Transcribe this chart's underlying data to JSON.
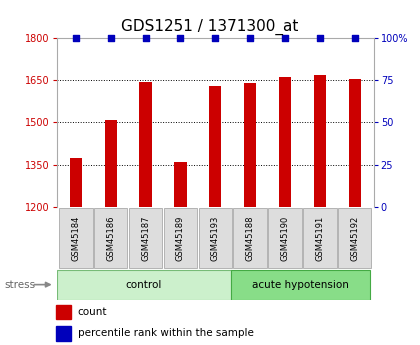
{
  "title": "GDS1251 / 1371300_at",
  "samples": [
    "GSM45184",
    "GSM45186",
    "GSM45187",
    "GSM45189",
    "GSM45193",
    "GSM45188",
    "GSM45190",
    "GSM45191",
    "GSM45192"
  ],
  "counts": [
    1375,
    1510,
    1645,
    1358,
    1630,
    1640,
    1660,
    1668,
    1655
  ],
  "percentiles": [
    100,
    100,
    100,
    100,
    100,
    100,
    100,
    100,
    100
  ],
  "bar_color": "#cc0000",
  "dot_color": "#0000bb",
  "left_ylim": [
    1200,
    1800
  ],
  "right_ylim": [
    0,
    100
  ],
  "left_yticks": [
    1200,
    1350,
    1500,
    1650,
    1800
  ],
  "right_yticks": [
    0,
    25,
    50,
    75,
    100
  ],
  "right_yticklabels": [
    "0",
    "25",
    "50",
    "75",
    "100%"
  ],
  "left_tick_color": "#cc0000",
  "right_tick_color": "#0000bb",
  "title_fontsize": 11,
  "label_fontsize": 7,
  "bg_color": "#ffffff",
  "ctrl_color": "#ccf0cc",
  "ah_color": "#88dd88",
  "ctrl_n": 5,
  "ah_n": 4
}
